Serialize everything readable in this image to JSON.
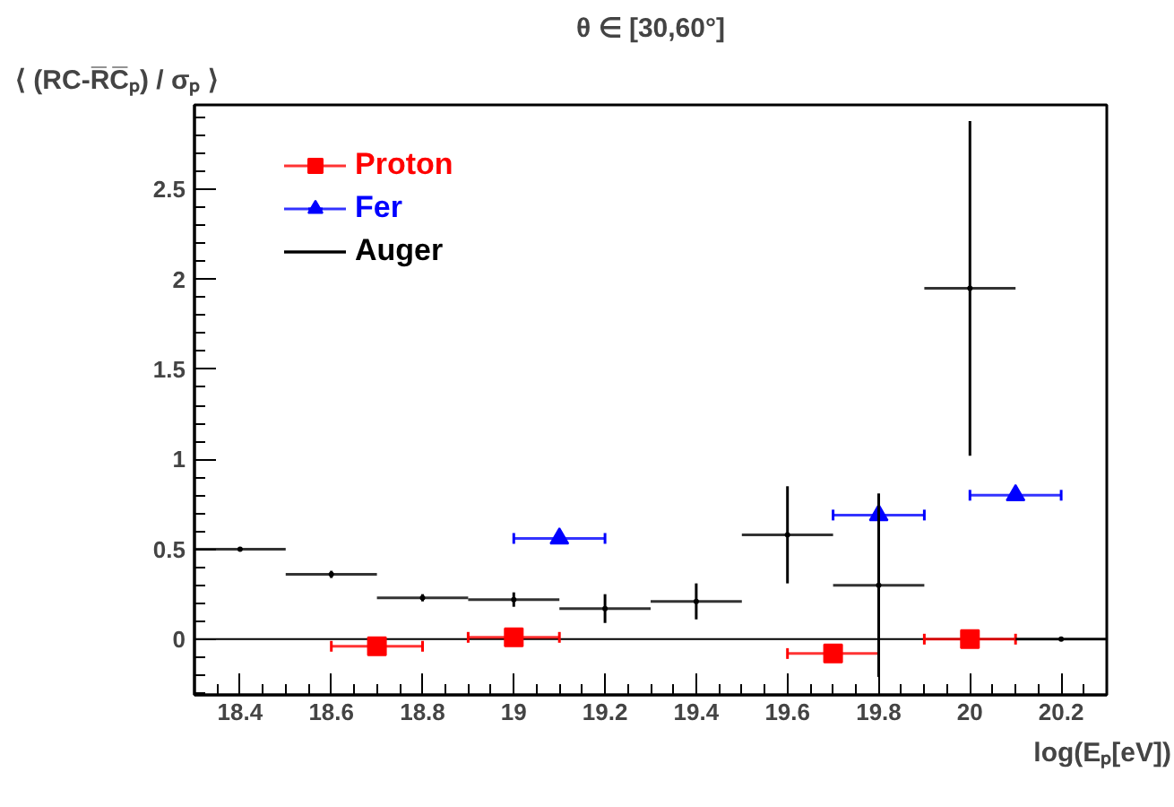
{
  "chart_data": {
    "type": "scatter",
    "title": "θ ∈ [30,60°]",
    "ylabel": "⟨ (RC-R̅C̅ₚ) / σₚ ⟩",
    "xlabel": "log(Eₚ[eV])",
    "xlim": [
      18.3,
      20.3
    ],
    "ylim": [
      -0.31,
      2.97
    ],
    "xticks": [
      18.4,
      18.6,
      18.8,
      19,
      19.2,
      19.4,
      19.6,
      19.8,
      20,
      20.2
    ],
    "yticks": [
      0,
      0.5,
      1,
      1.5,
      2,
      2.5
    ],
    "grid": false,
    "legend": "top left",
    "ref_lines": [
      {
        "axis": "y",
        "value": 0,
        "color": "#000000"
      }
    ],
    "series": [
      {
        "name": "Proton",
        "color": "#ff0000",
        "marker": "square",
        "x": [
          18.7,
          19.0,
          19.7,
          20.0
        ],
        "values": [
          -0.04,
          0.01,
          -0.08,
          0.0
        ],
        "xerrors": [
          0.1,
          0.1,
          0.1,
          0.1
        ]
      },
      {
        "name": "Fer",
        "color": "#0000ff",
        "marker": "triangle",
        "x": [
          19.1,
          19.8,
          20.1
        ],
        "values": [
          0.56,
          0.69,
          0.8
        ],
        "xerrors": [
          0.1,
          0.1,
          0.1
        ]
      },
      {
        "name": "Auger",
        "color": "#000000",
        "marker": "none",
        "x": [
          18.4,
          18.6,
          18.8,
          19.0,
          19.2,
          19.4,
          19.6,
          19.8,
          20.0,
          20.2
        ],
        "values": [
          0.5,
          0.36,
          0.23,
          0.22,
          0.17,
          0.21,
          0.58,
          0.3,
          1.95,
          0.0
        ],
        "xerrors": [
          0.1,
          0.1,
          0.1,
          0.1,
          0.1,
          0.1,
          0.1,
          0.1,
          0.1,
          0.1
        ],
        "errors": [
          0.01,
          0.02,
          0.02,
          0.04,
          0.08,
          0.1,
          0.27,
          0.51,
          0.93,
          0
        ]
      }
    ]
  }
}
